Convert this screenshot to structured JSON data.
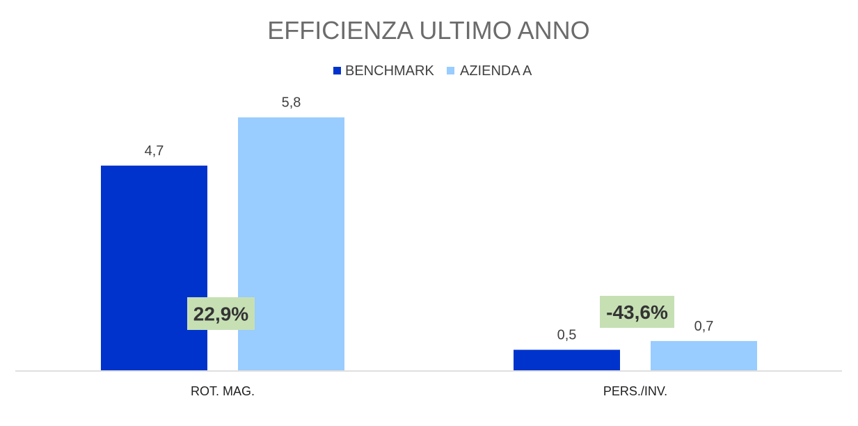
{
  "chart_data": {
    "type": "bar",
    "title": "EFFICIENZA ULTIMO ANNO",
    "xlabel": "",
    "ylabel": "",
    "categories": [
      "ROT. MAG.",
      "PERS./INV."
    ],
    "series": [
      {
        "name": "BENCHMARK",
        "values": [
          4.7,
          0.5
        ],
        "value_labels": [
          "4,7",
          "0,5"
        ],
        "color": "#0033CC"
      },
      {
        "name": "AZIENDA A",
        "values": [
          5.8,
          0.7
        ],
        "value_labels": [
          "5,8",
          "0,7"
        ],
        "color": "#99CCFF"
      }
    ],
    "annotations": [
      {
        "category": "ROT. MAG.",
        "text": "22,9%",
        "background": "#C6E0B4"
      },
      {
        "category": "PERS./INV.",
        "text": "-43,6%",
        "background": "#C6E0B4"
      }
    ],
    "ylim": [
      0,
      6
    ],
    "grid": false,
    "legend_position": "top",
    "axis_color": "#BFBFBF",
    "text_color": "#404040"
  }
}
